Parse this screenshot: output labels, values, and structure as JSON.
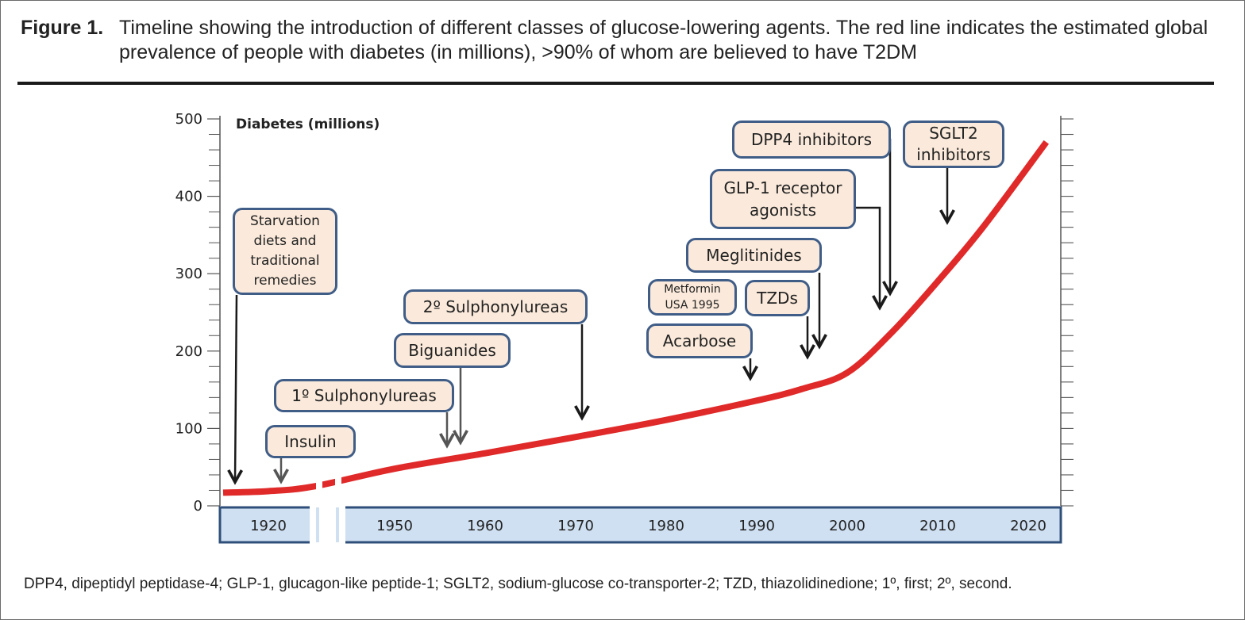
{
  "figure": {
    "label": "Figure 1.",
    "caption": "Timeline showing the introduction of different classes of glucose-lowering agents.  The red line indicates the estimated global prevalence of people with diabetes (in millions), >90% of whom are believed to have T2DM",
    "footnote": "DPP4, dipeptidyl peptidase-4;   GLP-1, glucagon-like peptide-1; SGLT2, sodium-glucose co-transporter-2; TZD, thiazolidinedione; 1º, first; 2º, second."
  },
  "colors": {
    "line": "#e02a2a",
    "axis_band": "#cfe0f2",
    "axis_border": "#2f4f7a",
    "box_fill": "#fbeadb",
    "box_border": "#3f5d87",
    "arrow_black": "#1a1a1a",
    "arrow_gray": "#555555"
  },
  "chart_data": {
    "type": "line",
    "ylabel": "Diabetes (millions)",
    "ylim": [
      0,
      500
    ],
    "yticks": [
      "0",
      "100",
      "200",
      "300",
      "400",
      "500"
    ],
    "xticks": [
      "1920",
      "1950",
      "1960",
      "1970",
      "1980",
      "1990",
      "2000",
      "2010",
      "2020"
    ],
    "axis_break": "between 1920 and 1950",
    "series": [
      {
        "x": [
          1915,
          1920,
          1925,
          1950,
          1960,
          1970,
          1980,
          1990,
          1995,
          2000,
          2005,
          2010,
          2015,
          2022
        ],
        "values": [
          17,
          19,
          25,
          48,
          68,
          89,
          111,
          136,
          151,
          172,
          225,
          290,
          360,
          470
        ]
      }
    ],
    "annotations": [
      {
        "id": "starvation",
        "label": "Starvation diets and traditional remedies",
        "year": 1915
      },
      {
        "id": "insulin",
        "label": "Insulin",
        "year": 1922
      },
      {
        "id": "sulph1",
        "label": "1º Sulphonylureas",
        "year": 1956
      },
      {
        "id": "biguanides",
        "label": "Biguanides",
        "year": 1957
      },
      {
        "id": "sulph2",
        "label": "2º Sulphonylureas",
        "year": 1970
      },
      {
        "id": "metformin",
        "label": "Metformin USA 1995",
        "year": 1995
      },
      {
        "id": "acarbose",
        "label": "Acarbose",
        "year": 1990
      },
      {
        "id": "tzds",
        "label": "TZDs",
        "year": 1997
      },
      {
        "id": "meglitinides",
        "label": "Meglitinides",
        "year": 1998
      },
      {
        "id": "glp1",
        "label": "GLP-1 receptor agonists",
        "year": 2005
      },
      {
        "id": "dpp4",
        "label": "DPP4 inhibitors",
        "year": 2006
      },
      {
        "id": "sglt2",
        "label": "SGLT2 inhibitors",
        "year": 2013
      }
    ]
  }
}
